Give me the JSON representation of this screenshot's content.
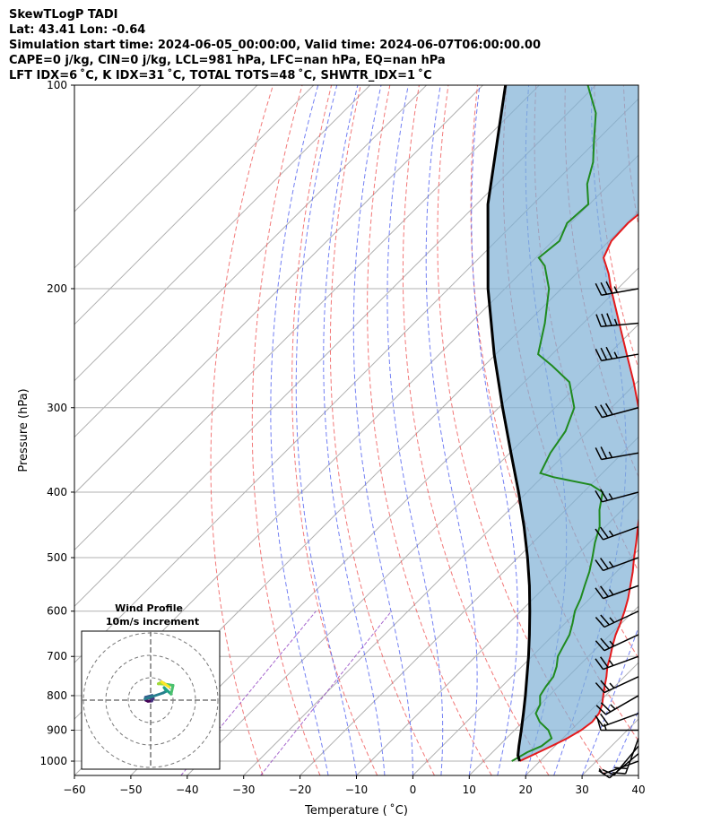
{
  "header": {
    "line1": "SkewTLogP TADI",
    "line2": "Lat: 43.41   Lon: -0.64",
    "line3": "Simulation start time: 2024-06-05_00:00:00, Valid time: 2024-06-07T06:00:00.00",
    "line4": "CAPE=0 j/kg, CIN=0 j/kg, LCL=981 hPa, LFC=nan hPa, EQ=nan hPa",
    "line5": "LFT IDX=6 ˚C, K IDX=31 ˚C, TOTAL TOTS=48 ˚C, SHWTR_IDX=1 ˚C"
  },
  "chart_data": {
    "type": "line",
    "title": "SkewTLogP TADI",
    "xlabel": "Temperature ( ˚C)",
    "ylabel": "Pressure (hPa)",
    "xlim": [
      -60,
      40
    ],
    "ylim": [
      1050,
      100
    ],
    "y_scale": "log",
    "skew": "45 degree",
    "x_ticks": [
      -60,
      -50,
      -40,
      -30,
      -20,
      -10,
      0,
      10,
      20,
      30,
      40
    ],
    "x_tick_labels": [
      "−60",
      "−50",
      "−40",
      "−30",
      "−20",
      "−10",
      "0",
      "10",
      "20",
      "30",
      "40"
    ],
    "y_ticks": [
      100,
      200,
      300,
      400,
      500,
      600,
      700,
      800,
      900,
      1000
    ],
    "y_tick_labels": [
      "100",
      "200",
      "300",
      "400",
      "500",
      "600",
      "700",
      "800",
      "900",
      "1000"
    ],
    "grid": true,
    "colors": {
      "temperature": "#e41a1c",
      "dewpoint": "#1f8a1f",
      "parcel": "#000000",
      "cape_fill": "#7fb0d6",
      "dry_adiabat": "#f06060",
      "moist_adiabat": "#5060f0",
      "mixing_ratio": "#9040c0"
    },
    "series": [
      {
        "name": "Temperature",
        "pressure": [
          1000,
          990,
          970,
          950,
          925,
          900,
          875,
          850,
          825,
          800,
          775,
          750,
          725,
          700,
          675,
          650,
          625,
          600,
          575,
          550,
          525,
          500,
          475,
          450,
          425,
          400,
          375,
          350,
          325,
          300,
          275,
          250,
          225,
          200,
          190,
          180,
          170,
          160,
          150,
          140,
          130,
          120,
          110,
          100
        ],
        "values": [
          16.4,
          17.0,
          18.2,
          19.4,
          20.8,
          21.8,
          22.3,
          22.0,
          21.0,
          19.6,
          18.2,
          16.8,
          15.2,
          13.9,
          12.4,
          11.0,
          9.8,
          8.4,
          6.8,
          4.9,
          2.9,
          0.6,
          -1.7,
          -4.2,
          -6.8,
          -9.6,
          -12.8,
          -16.4,
          -20.4,
          -25.2,
          -30.6,
          -36.8,
          -43.6,
          -51.2,
          -54.3,
          -58.0,
          -59.6,
          -59.8,
          -59.2,
          -58.6,
          -60.8,
          -63.2,
          -66.7,
          -70.2
        ]
      },
      {
        "name": "Dewpoint",
        "pressure": [
          1000,
          990,
          970,
          950,
          925,
          900,
          875,
          850,
          825,
          800,
          775,
          750,
          725,
          700,
          675,
          650,
          625,
          600,
          575,
          550,
          525,
          500,
          475,
          450,
          425,
          400,
          390,
          380,
          375,
          350,
          325,
          300,
          275,
          260,
          250,
          225,
          200,
          185,
          180,
          170,
          160,
          150,
          140,
          130,
          120,
          110,
          100
        ],
        "values": [
          15.0,
          15.4,
          16.2,
          17.6,
          18.0,
          16.0,
          13.0,
          10.8,
          10.0,
          8.4,
          7.8,
          7.4,
          6.2,
          4.6,
          3.7,
          2.8,
          1.3,
          -0.4,
          -1.6,
          -3.2,
          -4.8,
          -6.8,
          -9.0,
          -11.0,
          -14.0,
          -16.6,
          -20.0,
          -28.0,
          -31.0,
          -32.8,
          -34.0,
          -36.6,
          -42.0,
          -48.0,
          -52.5,
          -56.8,
          -62.2,
          -67.0,
          -69.5,
          -68.8,
          -70.6,
          -70.2,
          -74.0,
          -76.8,
          -80.8,
          -85.0,
          -91.4
        ]
      },
      {
        "name": "Parcel",
        "pressure": [
          1000,
          981,
          950,
          900,
          850,
          800,
          750,
          700,
          650,
          600,
          550,
          500,
          450,
          400,
          350,
          300,
          250,
          200,
          150,
          100
        ],
        "values": [
          16.4,
          15.1,
          13.6,
          11.2,
          8.6,
          5.8,
          2.7,
          -0.6,
          -4.3,
          -8.4,
          -13.0,
          -18.3,
          -24.4,
          -31.5,
          -39.8,
          -49.3,
          -60.3,
          -73.0,
          -88.0,
          -106.0
        ]
      }
    ],
    "wind_barbs": {
      "pressure": [
        1000,
        975,
        950,
        925,
        900,
        850,
        800,
        750,
        700,
        650,
        600,
        550,
        500,
        450,
        400,
        350,
        300,
        250,
        225,
        200
      ],
      "speed_kt": [
        5,
        10,
        10,
        20,
        15,
        20,
        25,
        25,
        25,
        25,
        25,
        25,
        25,
        25,
        25,
        25,
        30,
        35,
        35,
        35
      ],
      "direction_deg": [
        250,
        230,
        220,
        200,
        270,
        250,
        240,
        245,
        250,
        245,
        245,
        250,
        250,
        250,
        255,
        260,
        255,
        260,
        265,
        260
      ]
    },
    "inset": {
      "title": "Wind Profile",
      "subtitle": "10m/s increment",
      "type": "hodograph",
      "u": [
        -2.3,
        -1.2,
        0.5,
        1.2,
        -2.3,
        0.7,
        -2.5,
        5.5,
        7.1,
        6.0,
        9.1,
        10.0,
        6.7,
        3.4,
        5.0,
        8.2
      ],
      "v": [
        0.0,
        -0.5,
        -0.4,
        0.7,
        1.3,
        2.1,
        0.5,
        3.2,
        4.0,
        5.6,
        2.7,
        6.6,
        7.1,
        7.3,
        8.1,
        5.9
      ]
    }
  }
}
